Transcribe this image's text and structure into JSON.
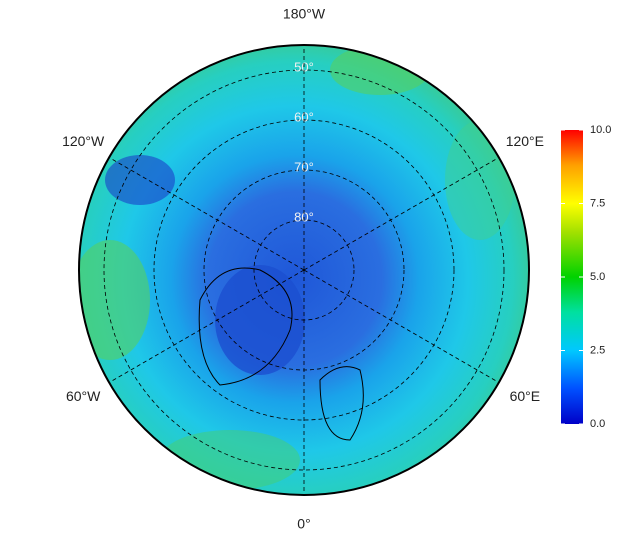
{
  "map": {
    "type": "polar",
    "lat_lim": [
      45,
      90
    ],
    "lat_labels": [
      {
        "value": 50,
        "label": "50°"
      },
      {
        "value": 60,
        "label": "60°"
      },
      {
        "value": 70,
        "label": "70°"
      },
      {
        "value": 80,
        "label": "80°"
      }
    ],
    "lon_labels": [
      {
        "value": 180,
        "label": "180°W"
      },
      {
        "value": 120,
        "label": "120°E"
      },
      {
        "value": 60,
        "label": "60°E"
      },
      {
        "value": 0,
        "label": "0°"
      },
      {
        "value": -60,
        "label": "60°W"
      },
      {
        "value": -120,
        "label": "120°W"
      }
    ],
    "colorbar": {
      "lim": [
        0,
        10
      ],
      "ticks": [
        {
          "value": 0,
          "label": "0.0"
        },
        2.5,
        {
          "value": 5,
          "label": "5.0"
        },
        7.5,
        {
          "value": 10,
          "label": "10.0"
        }
      ]
    }
  }
}
